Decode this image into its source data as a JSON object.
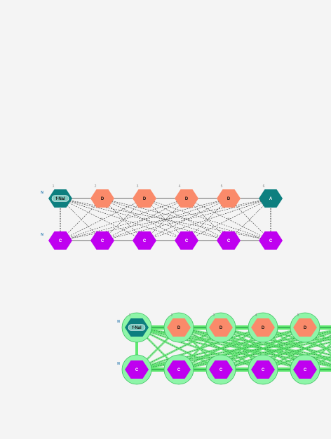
{
  "colors": {
    "background": "#f4f4f4",
    "teal": "#0d7f7f",
    "teal_pill": "#7ec9c0",
    "salmon": "#fa8a6a",
    "purple": "#bf00f0",
    "terminal_label": "#2a7ab0",
    "backbone": "#666666",
    "dashed": "#333333",
    "highlight": "#5fe870",
    "halo": "#8ef5a8",
    "halo_edge": "#3cc060"
  },
  "panels": [
    {
      "name": "panel-top",
      "terminal_labels": [
        "N",
        "N"
      ],
      "highlighted": false,
      "top_row": [
        {
          "position": "1",
          "label": "f-Nal",
          "kind": "teal-pill"
        },
        {
          "position": "2",
          "label": "D",
          "kind": "salmon"
        },
        {
          "position": "3",
          "label": "D",
          "kind": "salmon"
        },
        {
          "position": "4",
          "label": "D",
          "kind": "salmon"
        },
        {
          "position": "5",
          "label": "D",
          "kind": "salmon"
        },
        {
          "position": "6",
          "label": "A",
          "kind": "teal"
        }
      ],
      "bottom_row": [
        {
          "position": "",
          "label": "C",
          "kind": "purple"
        },
        {
          "position": "",
          "label": "C",
          "kind": "purple"
        },
        {
          "position": "",
          "label": "C",
          "kind": "purple"
        },
        {
          "position": "",
          "label": "C",
          "kind": "purple"
        },
        {
          "position": "",
          "label": "C",
          "kind": "purple"
        },
        {
          "position": "",
          "label": "C",
          "kind": "purple"
        }
      ],
      "edge_labels": [
        "H",
        "H",
        "H",
        "H",
        "H",
        "H",
        "H",
        "H"
      ]
    },
    {
      "name": "panel-bottom",
      "terminal_labels": [
        "N",
        "N"
      ],
      "highlighted": true,
      "top_row": [
        {
          "position": "1",
          "label": "f-Nal",
          "kind": "teal-pill"
        },
        {
          "position": "2",
          "label": "D",
          "kind": "salmon"
        },
        {
          "position": "3",
          "label": "D",
          "kind": "salmon"
        },
        {
          "position": "4",
          "label": "D",
          "kind": "salmon"
        },
        {
          "position": "5",
          "label": "D",
          "kind": "salmon"
        }
      ],
      "bottom_row": [
        {
          "position": "",
          "label": "C",
          "kind": "purple"
        },
        {
          "position": "",
          "label": "C",
          "kind": "purple"
        },
        {
          "position": "",
          "label": "C",
          "kind": "purple"
        },
        {
          "position": "",
          "label": "C",
          "kind": "purple"
        },
        {
          "position": "",
          "label": "C",
          "kind": "purple"
        }
      ],
      "edge_labels": []
    }
  ]
}
